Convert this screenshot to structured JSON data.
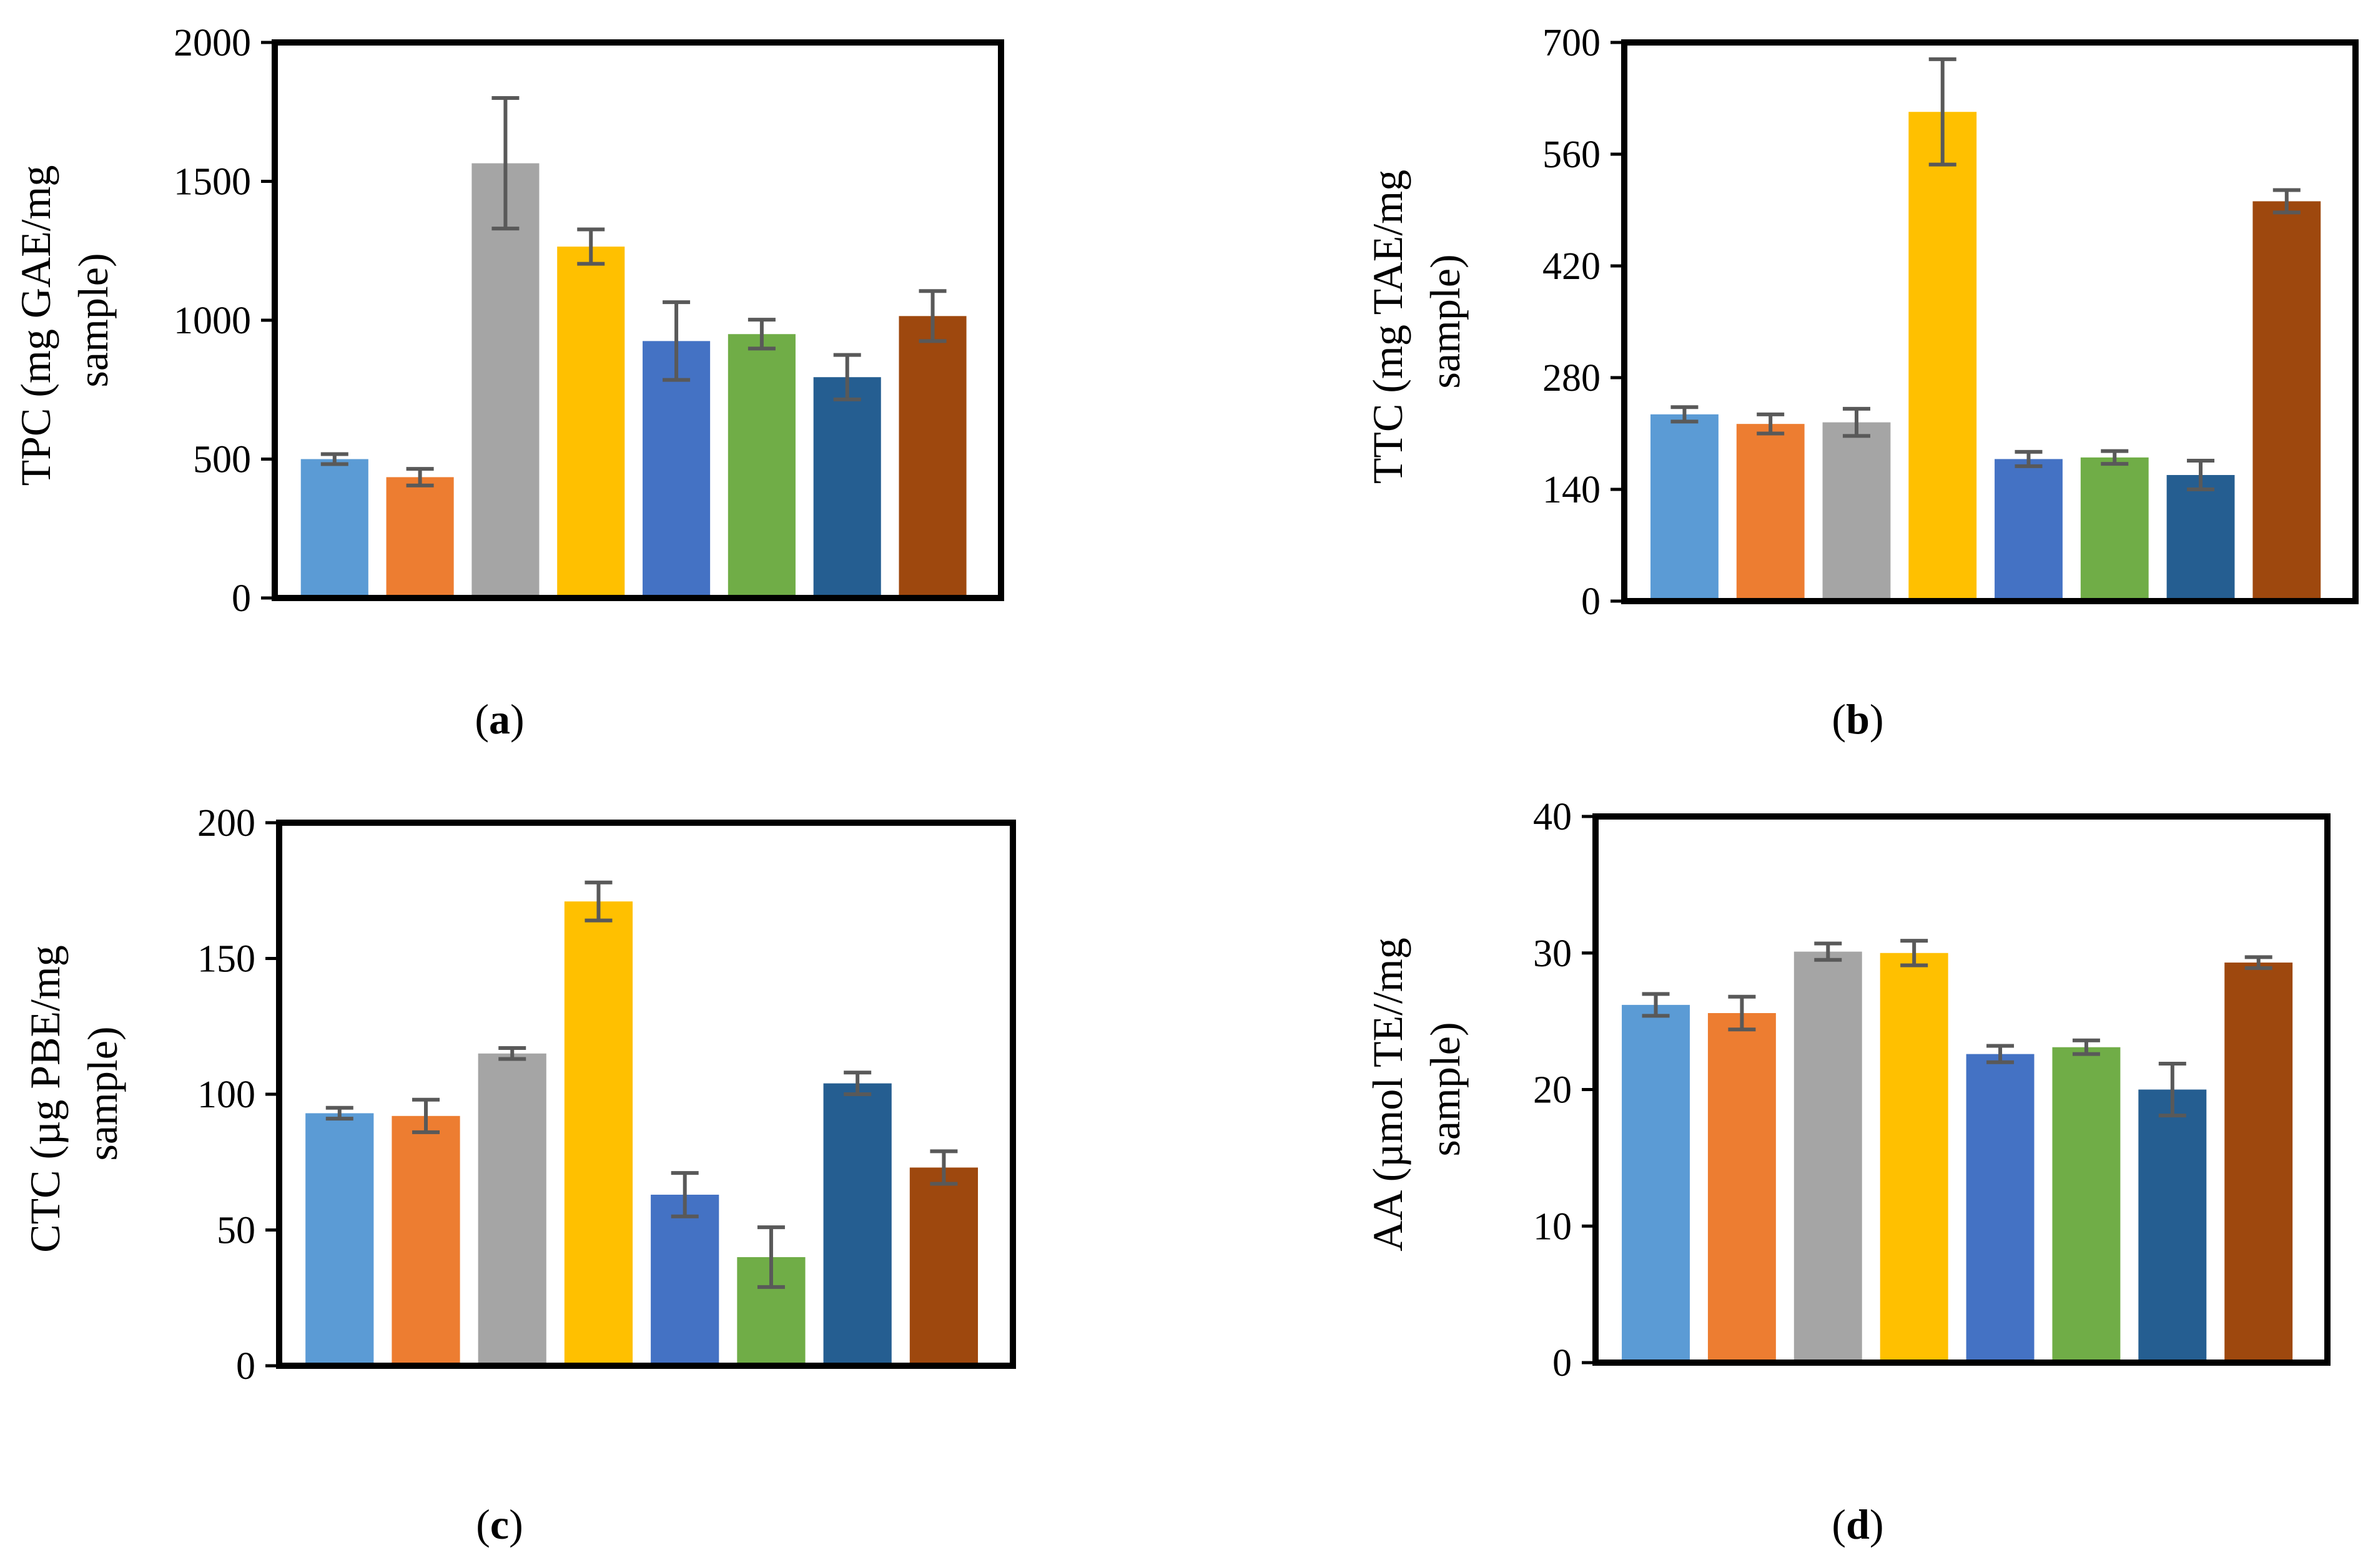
{
  "colors": [
    "#5B9BD5",
    "#ED7D31",
    "#A5A5A5",
    "#FFC000",
    "#4472C4",
    "#70AD47",
    "#255E91",
    "#9E480E"
  ],
  "error_bar_color": "#595959",
  "chart_data": [
    {
      "type": "bar",
      "panel_label": "a",
      "ylabel_lines": [
        "TPC (mg GAE/mg",
        "sample)"
      ],
      "ylim": [
        0,
        2000
      ],
      "yticks": [
        0,
        500,
        1000,
        1500,
        2000
      ],
      "grid": false,
      "legend": "none",
      "values": [
        500,
        435,
        1565,
        1265,
        925,
        950,
        795,
        1015
      ],
      "errors": [
        18,
        30,
        235,
        62,
        140,
        52,
        80,
        90
      ]
    },
    {
      "type": "bar",
      "panel_label": "b",
      "ylabel_lines": [
        "TTC (mg TAE/mg",
        "sample)"
      ],
      "ylim": [
        0,
        700
      ],
      "yticks": [
        0,
        140,
        280,
        420,
        560,
        700
      ],
      "grid": false,
      "legend": "none",
      "values": [
        234,
        222,
        224,
        613,
        178,
        180,
        158,
        501
      ],
      "errors": [
        9,
        12,
        17,
        66,
        9,
        8,
        18,
        14
      ]
    },
    {
      "type": "bar",
      "panel_label": "c",
      "ylabel_lines": [
        "CTC (µg PBE/mg",
        "sample)"
      ],
      "ylim": [
        0,
        200
      ],
      "yticks": [
        0,
        50,
        100,
        150,
        200
      ],
      "grid": false,
      "legend": "none",
      "values": [
        93,
        92,
        115,
        171,
        63,
        40,
        104,
        73
      ],
      "errors": [
        2,
        6,
        2,
        7,
        8,
        11,
        4,
        6
      ]
    },
    {
      "type": "bar",
      "panel_label": "d",
      "ylabel_lines": [
        "AA (µmol TE//mg",
        "sample)"
      ],
      "ylim": [
        0,
        40
      ],
      "yticks": [
        0,
        10,
        20,
        30,
        40
      ],
      "grid": false,
      "legend": "none",
      "values": [
        26.2,
        25.6,
        30.1,
        30.0,
        22.6,
        23.1,
        20.0,
        29.3
      ],
      "errors": [
        0.8,
        1.2,
        0.6,
        0.9,
        0.6,
        0.5,
        1.9,
        0.4
      ]
    }
  ]
}
